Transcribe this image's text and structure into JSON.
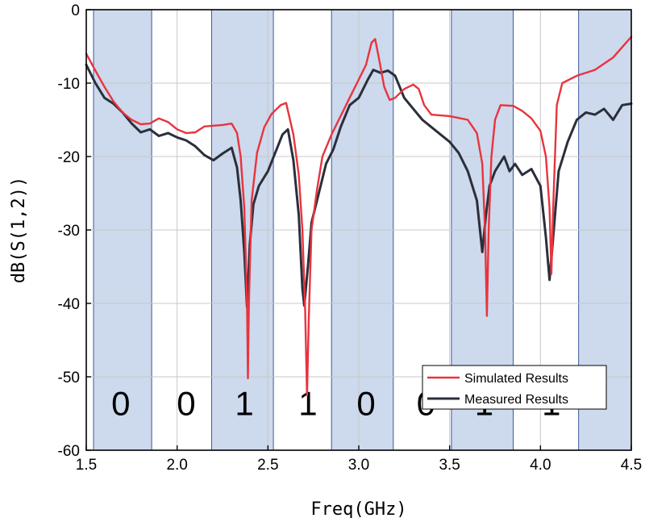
{
  "chart_data": {
    "type": "line",
    "xlabel": "Freq(GHz)",
    "ylabel": "dB(S(1,2))",
    "xlim": [
      1.5,
      4.5
    ],
    "ylim": [
      -60,
      0
    ],
    "x_ticks": [
      1.5,
      2.0,
      2.5,
      3.0,
      3.5,
      4.0,
      4.5
    ],
    "y_ticks": [
      0,
      -10,
      -20,
      -30,
      -40,
      -50,
      -60
    ],
    "grid": true,
    "legend_position": "bottom-right",
    "shaded_bands": [
      {
        "x_start": 1.54,
        "x_end": 1.86
      },
      {
        "x_start": 2.19,
        "x_end": 2.53
      },
      {
        "x_start": 2.85,
        "x_end": 3.19
      },
      {
        "x_start": 3.51,
        "x_end": 3.85
      },
      {
        "x_start": 4.21,
        "x_end": 4.5
      }
    ],
    "bit_labels": [
      {
        "text": "0",
        "x": 1.69
      },
      {
        "text": "0",
        "x": 2.05
      },
      {
        "text": "1",
        "x": 2.37
      },
      {
        "text": "1",
        "x": 2.72
      },
      {
        "text": "0",
        "x": 3.04
      },
      {
        "text": "0",
        "x": 3.37
      },
      {
        "text": "1",
        "x": 3.69
      },
      {
        "text": "1",
        "x": 4.06
      }
    ],
    "series": [
      {
        "name": "Simulated Results",
        "color": "#e8343e",
        "points": [
          [
            1.5,
            -6.0
          ],
          [
            1.55,
            -8.3
          ],
          [
            1.6,
            -10.5
          ],
          [
            1.65,
            -12.5
          ],
          [
            1.7,
            -14.0
          ],
          [
            1.75,
            -15.0
          ],
          [
            1.8,
            -15.6
          ],
          [
            1.85,
            -15.5
          ],
          [
            1.9,
            -14.8
          ],
          [
            1.95,
            -15.3
          ],
          [
            2.0,
            -16.3
          ],
          [
            2.05,
            -16.8
          ],
          [
            2.1,
            -16.7
          ],
          [
            2.15,
            -15.9
          ],
          [
            2.2,
            -15.8
          ],
          [
            2.25,
            -15.7
          ],
          [
            2.3,
            -15.5
          ],
          [
            2.33,
            -16.8
          ],
          [
            2.35,
            -20.0
          ],
          [
            2.37,
            -27.0
          ],
          [
            2.385,
            -40.0
          ],
          [
            2.39,
            -50.2
          ],
          [
            2.395,
            -40.0
          ],
          [
            2.41,
            -26.0
          ],
          [
            2.44,
            -19.5
          ],
          [
            2.48,
            -16.0
          ],
          [
            2.52,
            -14.2
          ],
          [
            2.57,
            -13.0
          ],
          [
            2.6,
            -12.7
          ],
          [
            2.64,
            -17.0
          ],
          [
            2.67,
            -22.5
          ],
          [
            2.69,
            -30.0
          ],
          [
            2.705,
            -41.0
          ],
          [
            2.715,
            -52.5
          ],
          [
            2.725,
            -42.0
          ],
          [
            2.74,
            -30.0
          ],
          [
            2.77,
            -24.5
          ],
          [
            2.8,
            -20.0
          ],
          [
            2.85,
            -17.0
          ],
          [
            2.9,
            -14.5
          ],
          [
            2.95,
            -12.0
          ],
          [
            3.0,
            -9.5
          ],
          [
            3.04,
            -7.5
          ],
          [
            3.07,
            -4.5
          ],
          [
            3.09,
            -4.0
          ],
          [
            3.11,
            -6.5
          ],
          [
            3.14,
            -10.5
          ],
          [
            3.17,
            -12.3
          ],
          [
            3.2,
            -12.0
          ],
          [
            3.25,
            -10.8
          ],
          [
            3.3,
            -10.2
          ],
          [
            3.33,
            -10.8
          ],
          [
            3.36,
            -13.0
          ],
          [
            3.4,
            -14.3
          ],
          [
            3.5,
            -14.5
          ],
          [
            3.6,
            -15.0
          ],
          [
            3.65,
            -16.8
          ],
          [
            3.68,
            -21.0
          ],
          [
            3.695,
            -30.0
          ],
          [
            3.705,
            -41.7
          ],
          [
            3.715,
            -30.0
          ],
          [
            3.73,
            -20.0
          ],
          [
            3.75,
            -15.0
          ],
          [
            3.78,
            -13.0
          ],
          [
            3.85,
            -13.1
          ],
          [
            3.9,
            -13.8
          ],
          [
            3.95,
            -14.8
          ],
          [
            4.0,
            -16.5
          ],
          [
            4.03,
            -20.0
          ],
          [
            4.05,
            -27.0
          ],
          [
            4.06,
            -36.0
          ],
          [
            4.07,
            -27.0
          ],
          [
            4.09,
            -13.0
          ],
          [
            4.12,
            -10.0
          ],
          [
            4.2,
            -9.0
          ],
          [
            4.3,
            -8.2
          ],
          [
            4.4,
            -6.5
          ],
          [
            4.5,
            -3.7
          ]
        ]
      },
      {
        "name": "Measured Results",
        "color": "#2a2f3a",
        "points": [
          [
            1.5,
            -7.5
          ],
          [
            1.55,
            -10.0
          ],
          [
            1.6,
            -12.0
          ],
          [
            1.65,
            -12.8
          ],
          [
            1.7,
            -14.0
          ],
          [
            1.75,
            -15.5
          ],
          [
            1.8,
            -16.7
          ],
          [
            1.85,
            -16.3
          ],
          [
            1.9,
            -17.2
          ],
          [
            1.95,
            -16.8
          ],
          [
            2.0,
            -17.4
          ],
          [
            2.05,
            -17.8
          ],
          [
            2.1,
            -18.6
          ],
          [
            2.15,
            -19.8
          ],
          [
            2.2,
            -20.5
          ],
          [
            2.25,
            -19.6
          ],
          [
            2.3,
            -18.8
          ],
          [
            2.33,
            -21.5
          ],
          [
            2.35,
            -26.0
          ],
          [
            2.37,
            -33.0
          ],
          [
            2.385,
            -40.5
          ],
          [
            2.4,
            -32.0
          ],
          [
            2.42,
            -26.5
          ],
          [
            2.45,
            -24.0
          ],
          [
            2.5,
            -22.0
          ],
          [
            2.54,
            -19.5
          ],
          [
            2.58,
            -17.0
          ],
          [
            2.61,
            -16.3
          ],
          [
            2.64,
            -20.5
          ],
          [
            2.67,
            -28.0
          ],
          [
            2.69,
            -38.0
          ],
          [
            2.7,
            -40.3
          ],
          [
            2.72,
            -35.0
          ],
          [
            2.74,
            -29.0
          ],
          [
            2.78,
            -25.0
          ],
          [
            2.82,
            -21.0
          ],
          [
            2.86,
            -19.0
          ],
          [
            2.9,
            -16.0
          ],
          [
            2.95,
            -13.0
          ],
          [
            3.0,
            -12.0
          ],
          [
            3.05,
            -9.5
          ],
          [
            3.08,
            -8.2
          ],
          [
            3.12,
            -8.6
          ],
          [
            3.16,
            -8.3
          ],
          [
            3.2,
            -9.0
          ],
          [
            3.25,
            -12.0
          ],
          [
            3.3,
            -13.5
          ],
          [
            3.35,
            -15.0
          ],
          [
            3.4,
            -16.0
          ],
          [
            3.45,
            -17.0
          ],
          [
            3.5,
            -18.0
          ],
          [
            3.55,
            -19.5
          ],
          [
            3.6,
            -22.0
          ],
          [
            3.65,
            -26.0
          ],
          [
            3.68,
            -33.0
          ],
          [
            3.7,
            -28.0
          ],
          [
            3.72,
            -24.0
          ],
          [
            3.75,
            -22.0
          ],
          [
            3.8,
            -20.0
          ],
          [
            3.83,
            -22.0
          ],
          [
            3.86,
            -21.0
          ],
          [
            3.9,
            -22.5
          ],
          [
            3.95,
            -21.7
          ],
          [
            4.0,
            -24.0
          ],
          [
            4.03,
            -31.0
          ],
          [
            4.05,
            -36.8
          ],
          [
            4.07,
            -31.0
          ],
          [
            4.1,
            -22.0
          ],
          [
            4.15,
            -18.0
          ],
          [
            4.2,
            -15.0
          ],
          [
            4.25,
            -14.0
          ],
          [
            4.3,
            -14.3
          ],
          [
            4.35,
            -13.5
          ],
          [
            4.4,
            -15.0
          ],
          [
            4.45,
            -13.0
          ],
          [
            4.5,
            -12.8
          ]
        ]
      }
    ]
  }
}
